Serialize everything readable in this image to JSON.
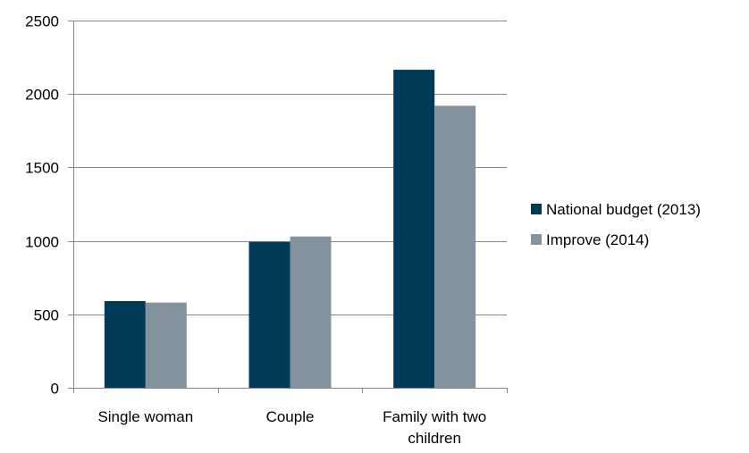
{
  "chart_data": {
    "type": "bar",
    "title": "",
    "xlabel": "",
    "ylabel": "",
    "categories": [
      "Single woman",
      "Couple",
      "Family with two children"
    ],
    "series": [
      {
        "name": "National budget (2013)",
        "color": "#003a57",
        "values": [
          590,
          993,
          2165
        ]
      },
      {
        "name": "Improve (2014)",
        "color": "#84929d",
        "values": [
          580,
          1030,
          1920
        ]
      }
    ],
    "ylim": [
      0,
      2500
    ],
    "yticks": [
      0,
      500,
      1000,
      1500,
      2000,
      2500
    ],
    "grid": true,
    "legend": "right"
  }
}
